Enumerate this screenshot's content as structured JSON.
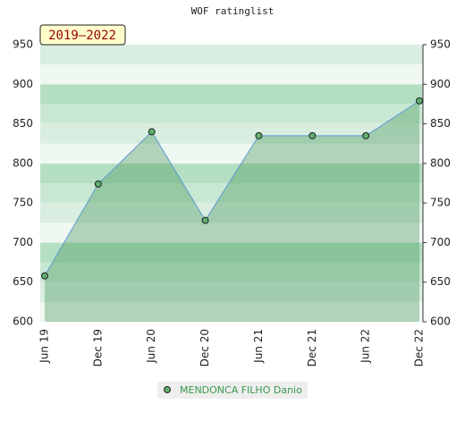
{
  "chart_data": {
    "type": "area",
    "title": "WOF ratinglist",
    "annotation": "2019–2022",
    "categories": [
      "Jun 19",
      "Dec 19",
      "Jun 20",
      "Dec 20",
      "Jun 21",
      "Dec 21",
      "Jun 22",
      "Dec 22"
    ],
    "series": [
      {
        "name": "MENDONCA FILHO Danio",
        "color": "#3c8f50",
        "values": [
          658,
          774,
          840,
          728,
          835,
          835,
          835,
          879
        ]
      }
    ],
    "ylim": [
      600,
      950
    ],
    "yticks": [
      600,
      650,
      700,
      750,
      800,
      850,
      900,
      950
    ],
    "grid": true
  }
}
